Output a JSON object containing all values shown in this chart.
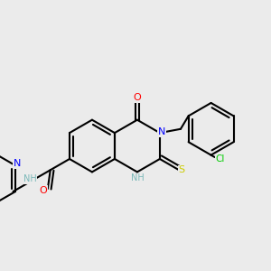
{
  "background_color": "#ebebeb",
  "bond_color": "#000000",
  "bond_width": 1.5,
  "atom_colors": {
    "N": "#0000ff",
    "O": "#ff0000",
    "S": "#cccc00",
    "Cl": "#00cc00",
    "H_label": "#7ab8b8",
    "C": "#000000"
  },
  "font_size": 7.5
}
